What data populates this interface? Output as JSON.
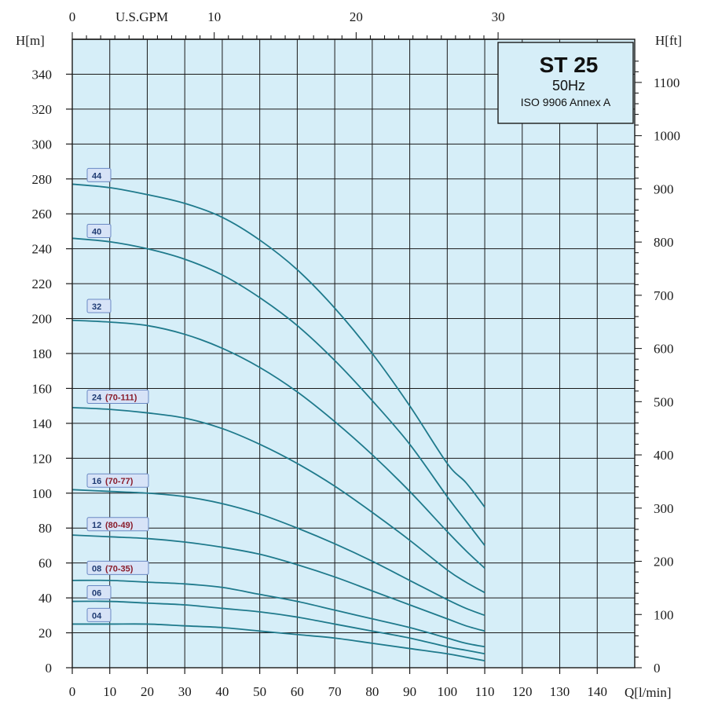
{
  "chart_data": {
    "type": "line",
    "title": "ST 25",
    "subtitle": "50Hz",
    "standard": "ISO 9906 Annex A",
    "xlabel": "Q[l/min]",
    "top_xlabel": "U.S.GPM",
    "ylabel": "H[m]",
    "right_ylabel": "H[ft]",
    "xlim": [
      0,
      150
    ],
    "ylim": [
      0,
      360
    ],
    "x_ticks": [
      "0",
      "10",
      "20",
      "30",
      "40",
      "50",
      "60",
      "70",
      "80",
      "90",
      "100",
      "110",
      "120",
      "130",
      "140"
    ],
    "y_ticks": [
      "0",
      "20",
      "40",
      "60",
      "80",
      "100",
      "120",
      "140",
      "160",
      "180",
      "200",
      "220",
      "240",
      "260",
      "280",
      "300",
      "320",
      "340"
    ],
    "top_ticks": [
      {
        "label": "0",
        "value": 0
      },
      {
        "label": "10",
        "value": 10
      },
      {
        "label": "20",
        "value": 20
      },
      {
        "label": "30",
        "value": 30
      }
    ],
    "right_ticks": [
      {
        "label": "0",
        "value": 0
      },
      {
        "label": "100",
        "value": 100
      },
      {
        "label": "200",
        "value": 200
      },
      {
        "label": "300",
        "value": 300
      },
      {
        "label": "400",
        "value": 400
      },
      {
        "label": "500",
        "value": 500
      },
      {
        "label": "600",
        "value": 600
      },
      {
        "label": "700",
        "value": 700
      },
      {
        "label": "800",
        "value": 800
      },
      {
        "label": "900",
        "value": 900
      },
      {
        "label": "1000",
        "value": 1000
      },
      {
        "label": "1100",
        "value": 1100
      }
    ],
    "x": [
      0,
      10,
      20,
      30,
      40,
      50,
      60,
      70,
      80,
      90,
      100,
      105,
      110
    ],
    "series": [
      {
        "name": "44",
        "range": "",
        "label_y": 282,
        "values": [
          277,
          275,
          271,
          266,
          258,
          245,
          228,
          206,
          180,
          150,
          117,
          106,
          92
        ]
      },
      {
        "name": "40",
        "range": "",
        "label_y": 250,
        "values": [
          246,
          244,
          240,
          234,
          225,
          212,
          196,
          176,
          153,
          128,
          98,
          84,
          70
        ]
      },
      {
        "name": "32",
        "range": "",
        "label_y": 207,
        "values": [
          199,
          198,
          196,
          191,
          183,
          172,
          158,
          141,
          122,
          101,
          78,
          67,
          57
        ]
      },
      {
        "name": "24",
        "range": "(70-111)",
        "label_y": 155,
        "values": [
          149,
          148,
          146,
          143,
          137,
          128,
          117,
          104,
          89,
          73,
          56,
          49,
          43
        ]
      },
      {
        "name": "16",
        "range": "(70-77)",
        "label_y": 107,
        "values": [
          102,
          101,
          100,
          98,
          94,
          88,
          80,
          71,
          61,
          50,
          39,
          34,
          30
        ]
      },
      {
        "name": "12",
        "range": "(80-49)",
        "label_y": 82,
        "values": [
          76,
          75,
          74,
          72,
          69,
          65,
          59,
          52,
          44,
          36,
          28,
          24,
          21
        ]
      },
      {
        "name": "08",
        "range": "(70-35)",
        "label_y": 57,
        "values": [
          50,
          50,
          49,
          48,
          46,
          42,
          38,
          33,
          28,
          23,
          17,
          14,
          12
        ]
      },
      {
        "name": "06",
        "range": "",
        "label_y": 43,
        "values": [
          38,
          38,
          37,
          36,
          34,
          32,
          29,
          25,
          21,
          17,
          12,
          10,
          8
        ]
      },
      {
        "name": "04",
        "range": "",
        "label_y": 30,
        "values": [
          25,
          25,
          25,
          24,
          23,
          21,
          19,
          17,
          14,
          11,
          8,
          6,
          4
        ]
      }
    ],
    "grid": true,
    "colors": {
      "background": "#d6eef8",
      "grid": "#1a1a1a",
      "curve": "#1f7a8c"
    }
  }
}
